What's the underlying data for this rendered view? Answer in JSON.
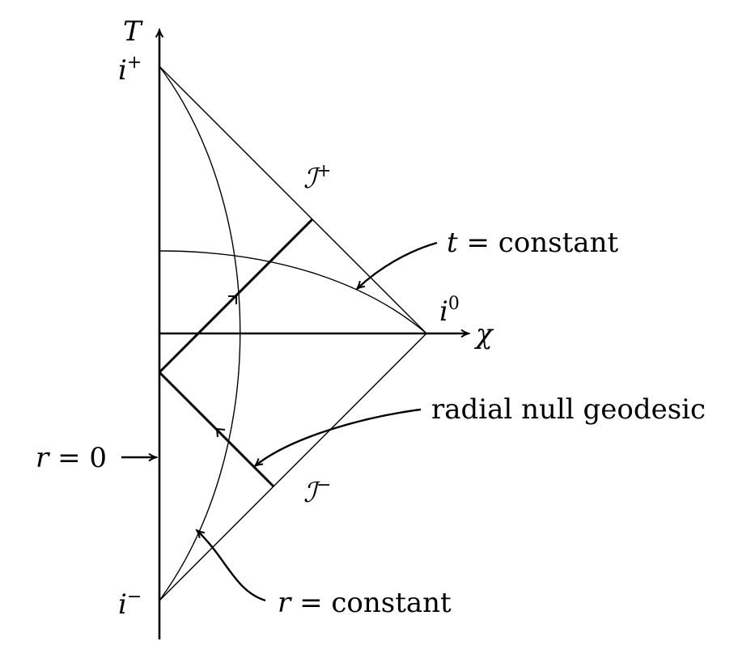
{
  "axes": {
    "vertical_label": "T",
    "horizontal_label": "χ"
  },
  "points": {
    "future_timelike_infinity": {
      "base": "i",
      "sup": "+"
    },
    "past_timelike_infinity": {
      "base": "i",
      "sup": "−"
    },
    "spatial_infinity": {
      "base": "i",
      "sup": "0"
    }
  },
  "boundaries": {
    "future_null_infinity": {
      "base": "ℐ",
      "sup": "+"
    },
    "past_null_infinity": {
      "base": "ℐ",
      "sup": "−"
    }
  },
  "annotations": {
    "t_constant": {
      "var": "t",
      "eq": " = constant"
    },
    "r_constant": {
      "var": "r",
      "eq": " = constant"
    },
    "r_zero": {
      "var": "r",
      "eq": " = 0"
    },
    "radial_null_geodesic": "radial null geodesic"
  }
}
